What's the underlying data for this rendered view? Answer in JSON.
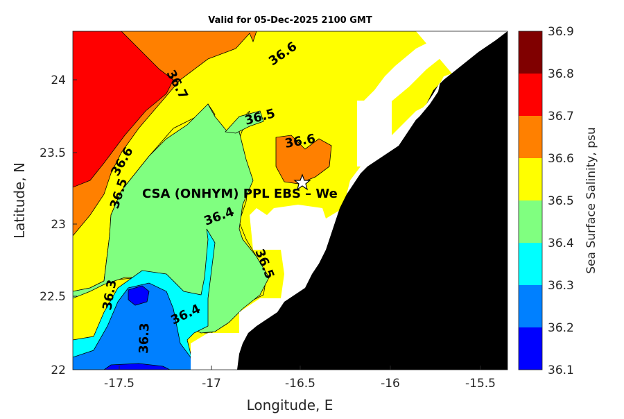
{
  "title": "Valid for 05-Dec-2025 2100 GMT",
  "x_axis": {
    "label": "Longitude, E",
    "ticks": [
      "-17.5",
      "-17",
      "-16.5",
      "-16",
      "-15.5"
    ]
  },
  "y_axis": {
    "label": "Latitude, N",
    "ticks": [
      "24",
      "23.5",
      "23",
      "22.5",
      "22"
    ]
  },
  "colorbar": {
    "label": "Sea Surface Salinity, psu",
    "ticks": [
      "36.9",
      "36.8",
      "36.7",
      "36.6",
      "36.5",
      "36.4",
      "36.3",
      "36.2",
      "36.1"
    ],
    "colors": [
      "#800000",
      "#ff0000",
      "#ff8000",
      "#ffff00",
      "#80ff80",
      "#00ffff",
      "#0080ff",
      "#0000ff"
    ]
  },
  "contour_labels": [
    "36.7",
    "36.6",
    "36.5",
    "36.6",
    "36.6",
    "36.5",
    "36.4",
    "36.5",
    "36.3",
    "36.4",
    "36.3"
  ],
  "site_label": "CSA (ONHYM) PPL EBS  – We",
  "marker": "star-marker",
  "land_color": "#000000"
}
